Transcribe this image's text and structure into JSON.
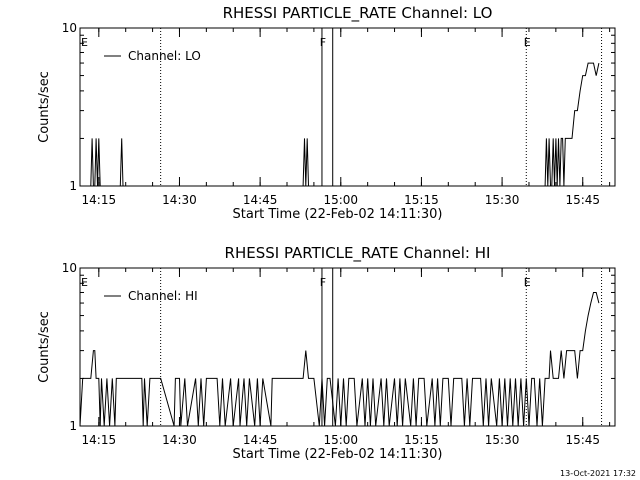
{
  "chart_data": [
    {
      "type": "line",
      "title": "RHESSI PARTICLE_RATE Channel: LO",
      "xlabel": "Start Time (22-Feb-02 14:11:30)",
      "ylabel": "Counts/sec",
      "yscale": "log",
      "xlim": [
        "14:11:30",
        "15:51:00"
      ],
      "ylim": [
        1,
        10
      ],
      "x_tick_labels": [
        "14:15",
        "14:30",
        "14:45",
        "15:00",
        "15:15",
        "15:30",
        "15:45"
      ],
      "y_tick_labels": [
        "1",
        "10"
      ],
      "legend": {
        "entries": [
          "Channel: LO"
        ],
        "position": "top-left"
      },
      "events": [
        {
          "label": "E",
          "time": "14:11:30",
          "style": "dotted"
        },
        {
          "label": "",
          "time": "14:26:30",
          "style": "dotted"
        },
        {
          "label": "F",
          "time": "14:56:30",
          "style": "solid"
        },
        {
          "label": "",
          "time": "14:58:30",
          "style": "solid"
        },
        {
          "label": "E",
          "time": "15:34:30",
          "style": "dotted"
        },
        {
          "label": "",
          "time": "15:48:30",
          "style": "dotted"
        }
      ],
      "series": [
        {
          "name": "Channel: LO",
          "x": [
            "14:11:30",
            "14:13:30",
            "14:13:45",
            "14:14:00",
            "14:14:15",
            "14:14:30",
            "14:14:45",
            "14:15:00",
            "14:15:15",
            "14:15:30",
            "14:19:00",
            "14:19:15",
            "14:19:30",
            "14:53:00",
            "14:53:15",
            "14:53:30",
            "14:53:45",
            "14:54:00",
            "14:54:15",
            "15:38:00",
            "15:38:15",
            "15:38:30",
            "15:38:45",
            "15:39:00",
            "15:39:15",
            "15:39:30",
            "15:39:45",
            "15:40:00",
            "15:40:15",
            "15:40:30",
            "15:40:45",
            "15:41:00",
            "15:41:15",
            "15:41:30",
            "15:41:45",
            "15:42:00",
            "15:42:30",
            "15:43:00",
            "15:43:30",
            "15:44:00",
            "15:44:30",
            "15:45:00",
            "15:45:30",
            "15:46:00",
            "15:46:30",
            "15:47:00",
            "15:47:30",
            "15:48:00"
          ],
          "y": [
            1,
            1,
            2,
            1,
            1,
            2,
            1,
            2,
            1,
            1,
            1,
            2,
            1,
            1,
            2,
            1,
            2,
            1,
            1,
            1,
            2,
            1,
            2,
            1,
            1,
            2,
            1,
            2,
            1,
            2,
            1,
            2,
            2,
            1,
            2,
            2,
            2,
            2,
            3,
            3,
            4,
            5,
            5,
            6,
            6,
            6,
            5,
            6
          ]
        }
      ]
    },
    {
      "type": "line",
      "title": "RHESSI PARTICLE_RATE Channel: HI",
      "xlabel": "Start Time (22-Feb-02 14:11:30)",
      "ylabel": "Counts/sec",
      "yscale": "log",
      "xlim": [
        "14:11:30",
        "15:51:00"
      ],
      "ylim": [
        1,
        10
      ],
      "x_tick_labels": [
        "14:15",
        "14:30",
        "14:45",
        "15:00",
        "15:15",
        "15:30",
        "15:45"
      ],
      "y_tick_labels": [
        "1",
        "10"
      ],
      "legend": {
        "entries": [
          "Channel: HI"
        ],
        "position": "top-left"
      },
      "events": [
        {
          "label": "E",
          "time": "14:11:30",
          "style": "dotted"
        },
        {
          "label": "",
          "time": "14:26:30",
          "style": "dotted"
        },
        {
          "label": "F",
          "time": "14:56:30",
          "style": "solid"
        },
        {
          "label": "",
          "time": "14:58:30",
          "style": "solid"
        },
        {
          "label": "E",
          "time": "15:34:30",
          "style": "dotted"
        },
        {
          "label": "",
          "time": "15:48:30",
          "style": "dotted"
        }
      ],
      "series": [
        {
          "name": "Channel: HI",
          "x": [
            "14:11:30",
            "14:12:00",
            "14:12:30",
            "14:13:00",
            "14:13:30",
            "14:14:00",
            "14:14:15",
            "14:14:30",
            "14:15:00",
            "14:15:15",
            "14:15:30",
            "14:16:00",
            "14:16:30",
            "14:17:00",
            "14:17:30",
            "14:18:00",
            "14:18:15",
            "14:18:30",
            "14:19:00",
            "14:19:30",
            "14:20:00",
            "14:23:00",
            "14:23:15",
            "14:23:30",
            "14:24:00",
            "14:24:30",
            "14:25:00",
            "14:26:00",
            "14:26:30",
            "14:29:00",
            "14:29:15",
            "14:30:00",
            "14:30:15",
            "14:31:00",
            "14:31:30",
            "14:33:00",
            "14:33:30",
            "14:34:00",
            "14:34:30",
            "14:35:00",
            "14:37:00",
            "14:37:30",
            "14:38:00",
            "14:38:30",
            "14:39:30",
            "14:40:00",
            "14:41:00",
            "14:41:15",
            "14:42:00",
            "14:42:30",
            "14:43:00",
            "14:44:00",
            "14:44:30",
            "14:45:00",
            "14:45:30",
            "14:47:00",
            "14:47:15",
            "14:48:00",
            "14:48:30",
            "14:49:00",
            "14:50:00",
            "14:50:30",
            "14:51:30",
            "14:52:00",
            "14:53:00",
            "14:53:30",
            "14:54:00",
            "14:54:30",
            "14:55:00",
            "14:56:00",
            "14:56:30",
            "14:57:00",
            "14:57:30",
            "14:58:00",
            "14:59:00",
            "14:59:30",
            "15:00:00",
            "15:00:30",
            "15:01:00",
            "15:01:30",
            "15:02:30",
            "15:03:00",
            "15:04:00",
            "15:04:30",
            "15:05:00",
            "15:05:30",
            "15:06:00",
            "15:06:30",
            "15:07:30",
            "15:08:00",
            "15:08:30",
            "15:09:00",
            "15:10:00",
            "15:10:30",
            "15:11:00",
            "15:11:30",
            "15:12:00",
            "15:13:00",
            "15:13:30",
            "15:14:00",
            "15:14:30",
            "15:15:30",
            "15:16:00",
            "15:17:00",
            "15:17:30",
            "15:18:00",
            "15:18:30",
            "15:19:00",
            "15:20:00",
            "15:20:30",
            "15:21:00",
            "15:22:30",
            "15:23:00",
            "15:23:30",
            "15:24:00",
            "15:24:30",
            "15:25:00",
            "15:26:00",
            "15:26:30",
            "15:27:00",
            "15:27:30",
            "15:28:00",
            "15:29:00",
            "15:29:30",
            "15:30:00",
            "15:30:30",
            "15:31:00",
            "15:31:30",
            "15:32:00",
            "15:32:30",
            "15:33:00",
            "15:33:30",
            "15:34:00",
            "15:34:30",
            "15:35:00",
            "15:35:30",
            "15:36:00",
            "15:36:30",
            "15:37:00",
            "15:37:30",
            "15:38:00",
            "15:38:15",
            "15:38:30",
            "15:38:45",
            "15:39:00",
            "15:39:30",
            "15:40:00",
            "15:40:30",
            "15:41:00",
            "15:41:30",
            "15:42:00",
            "15:42:30",
            "15:43:00",
            "15:43:30",
            "15:44:00",
            "15:44:30",
            "15:45:00",
            "15:45:30",
            "15:46:00",
            "15:46:30",
            "15:47:00",
            "15:47:30",
            "15:48:00"
          ],
          "y": [
            1,
            2,
            2,
            2,
            2,
            3,
            3,
            2,
            2,
            1,
            2,
            1,
            2,
            1,
            2,
            1,
            2,
            2,
            2,
            2,
            2,
            2,
            1,
            2,
            1,
            2,
            2,
            2,
            2,
            1,
            2,
            2,
            1,
            2,
            1,
            2,
            1,
            2,
            1,
            2,
            2,
            1,
            2,
            1,
            2,
            1,
            2,
            1,
            2,
            1,
            2,
            1,
            2,
            1,
            2,
            1,
            2,
            2,
            2,
            2,
            2,
            2,
            2,
            2,
            2,
            3,
            2,
            2,
            2,
            1,
            2,
            1,
            2,
            2,
            1,
            2,
            1,
            2,
            1,
            2,
            2,
            1,
            2,
            1,
            2,
            1,
            2,
            1,
            2,
            1,
            2,
            1,
            2,
            1,
            2,
            1,
            2,
            1,
            2,
            1,
            2,
            2,
            1,
            2,
            1,
            2,
            1,
            2,
            2,
            1,
            2,
            2,
            1,
            2,
            1,
            2,
            2,
            2,
            1,
            2,
            1,
            2,
            1,
            2,
            1,
            2,
            1,
            2,
            1,
            2,
            1,
            2,
            1,
            2,
            1,
            2,
            2,
            1,
            2,
            1,
            2,
            2,
            2,
            2,
            3,
            2,
            2,
            2,
            3,
            2,
            3,
            3,
            3,
            3,
            2,
            3,
            3,
            4,
            5,
            6,
            7,
            7,
            6
          ]
        }
      ]
    }
  ],
  "footer": {
    "date_stamp": "13-Oct-2021 17:32"
  }
}
